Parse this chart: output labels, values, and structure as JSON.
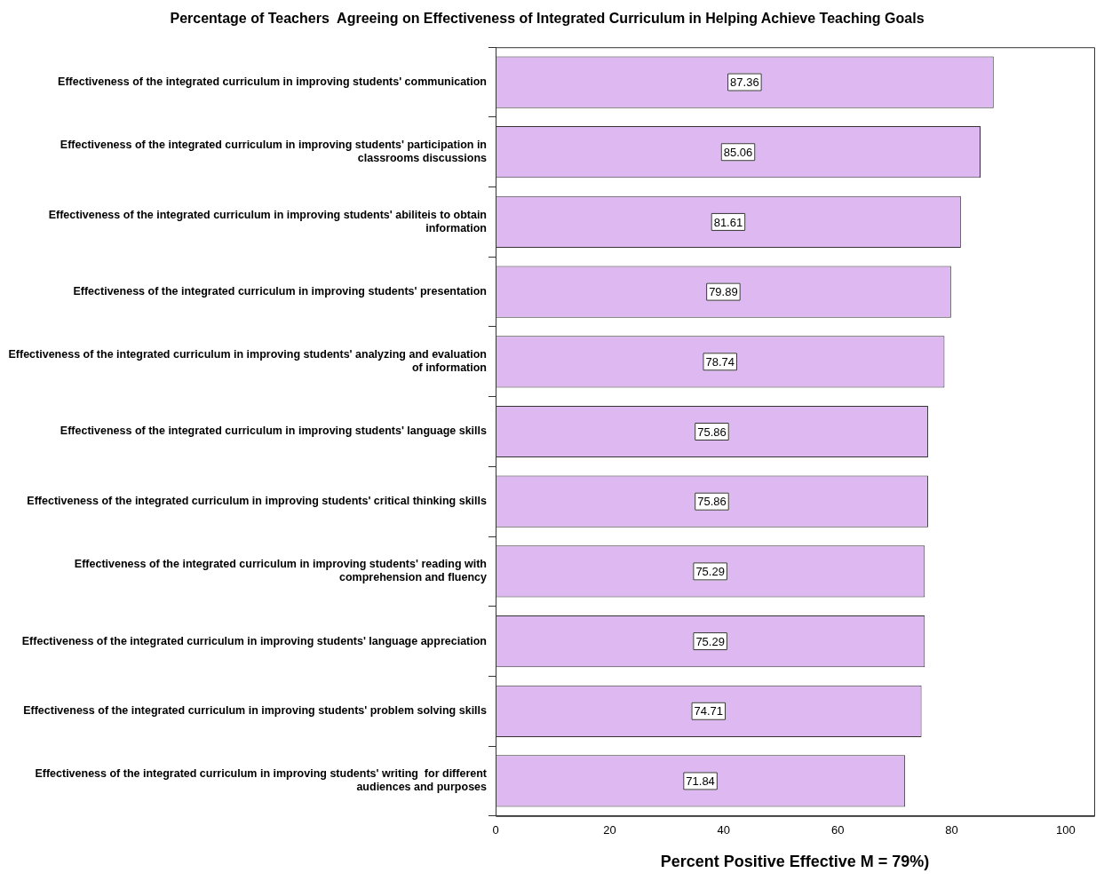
{
  "chart_data": {
    "type": "bar",
    "orientation": "horizontal",
    "title": "Percentage of Teachers  Agreeing on Effectiveness of Integrated Curriculum in Helping Achieve Teaching Goals",
    "xlabel": "Percent Positive Effective M = 79%)",
    "categories": [
      "Effectiveness of the integrated curriculum in improving students' communication",
      "Effectiveness of the integrated curriculum in improving students' participation in classrooms discussions",
      "Effectiveness of the integrated curriculum in improving students' abiliteis to obtain information",
      "Effectiveness of the integrated curriculum in improving students' presentation",
      "Effectiveness of the integrated curriculum in improving students' analyzing and evaluation of information",
      "Effectiveness of the integrated curriculum in improving students' language skills",
      "Effectiveness of the integrated curriculum in improving students' critical thinking skills",
      "Effectiveness of the integrated curriculum in improving students' reading with comprehension and fluency",
      "Effectiveness of the integrated curriculum in improving students' language appreciation",
      "Effectiveness of the integrated curriculum in improving students' problem solving skills",
      "Effectiveness of the integrated curriculum in improving students' writing  for different audiences and purposes"
    ],
    "values": [
      87.36,
      85.06,
      81.61,
      79.89,
      78.74,
      75.86,
      75.86,
      75.29,
      75.29,
      74.71,
      71.84
    ],
    "color": "#ddb8f1",
    "data_labels": true,
    "grid": false,
    "legend": false,
    "xlim": [
      0,
      105
    ],
    "xticks": [
      0,
      20,
      40,
      60,
      80,
      100
    ]
  }
}
